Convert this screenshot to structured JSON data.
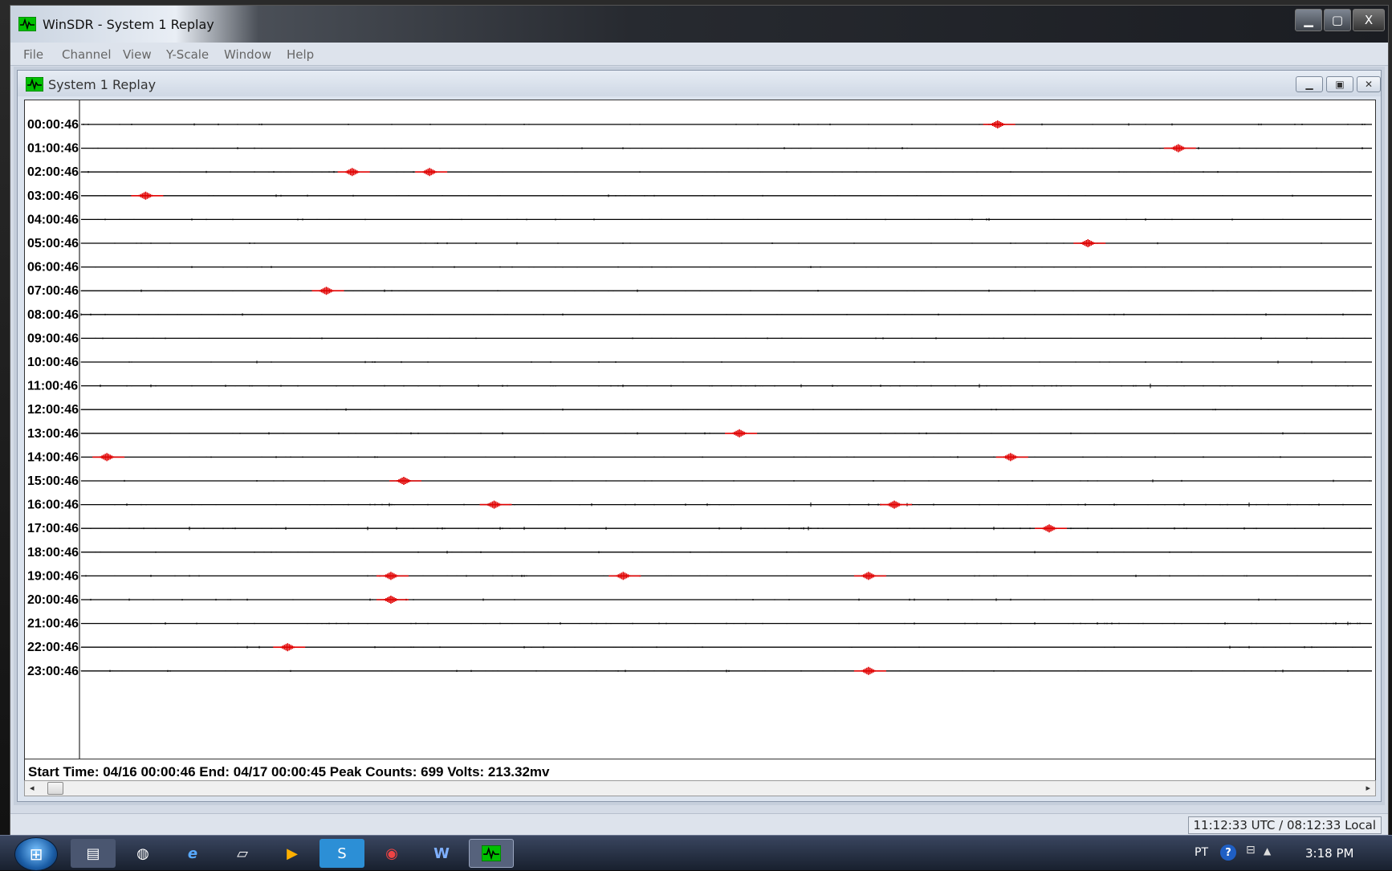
{
  "window": {
    "title": "WinSDR - System 1 Replay",
    "minimize_glyph": "▁",
    "maximize_glyph": "▢",
    "close_glyph": "X"
  },
  "menu": [
    "File",
    "Channel",
    "View",
    "Y-Scale",
    "Window",
    "Help"
  ],
  "child_window": {
    "title": "System 1 Replay"
  },
  "trace_labels": [
    "00:00:46",
    "01:00:46",
    "02:00:46",
    "03:00:46",
    "04:00:46",
    "05:00:46",
    "06:00:46",
    "07:00:46",
    "08:00:46",
    "09:00:46",
    "10:00:46",
    "11:00:46",
    "12:00:46",
    "13:00:46",
    "14:00:46",
    "15:00:46",
    "16:00:46",
    "17:00:46",
    "18:00:46",
    "19:00:46",
    "20:00:46",
    "21:00:46",
    "22:00:46",
    "23:00:46"
  ],
  "event_markers": [
    {
      "row": 0,
      "pos": 0.71
    },
    {
      "row": 1,
      "pos": 0.85
    },
    {
      "row": 2,
      "pos": 0.21
    },
    {
      "row": 2,
      "pos": 0.27
    },
    {
      "row": 3,
      "pos": 0.05
    },
    {
      "row": 5,
      "pos": 0.78
    },
    {
      "row": 7,
      "pos": 0.19
    },
    {
      "row": 13,
      "pos": 0.51
    },
    {
      "row": 14,
      "pos": 0.02
    },
    {
      "row": 14,
      "pos": 0.72
    },
    {
      "row": 15,
      "pos": 0.25
    },
    {
      "row": 16,
      "pos": 0.32
    },
    {
      "row": 16,
      "pos": 0.63
    },
    {
      "row": 17,
      "pos": 0.75
    },
    {
      "row": 19,
      "pos": 0.24
    },
    {
      "row": 19,
      "pos": 0.42
    },
    {
      "row": 19,
      "pos": 0.61
    },
    {
      "row": 20,
      "pos": 0.24
    },
    {
      "row": 22,
      "pos": 0.16
    },
    {
      "row": 23,
      "pos": 0.61
    }
  ],
  "status_text": "Start Time: 04/16 00:00:46  End: 04/17 00:00:45  Peak Counts: 699  Volts: 213.32mv",
  "clock": "11:12:33 UTC / 08:12:33 Local",
  "taskbar": {
    "apps": [
      "explorer-icon",
      "ie-alt-icon",
      "internet-explorer-icon",
      "device-icon",
      "media-player-icon",
      "skype-icon",
      "chrome-icon",
      "word-icon",
      "winsdr-icon"
    ],
    "tray_language": "PT",
    "tray_help": "?",
    "tray_time": "3:18 PM"
  },
  "colors": {
    "trace": "#000000",
    "event": "#e00000",
    "accent": "#00aa00"
  }
}
